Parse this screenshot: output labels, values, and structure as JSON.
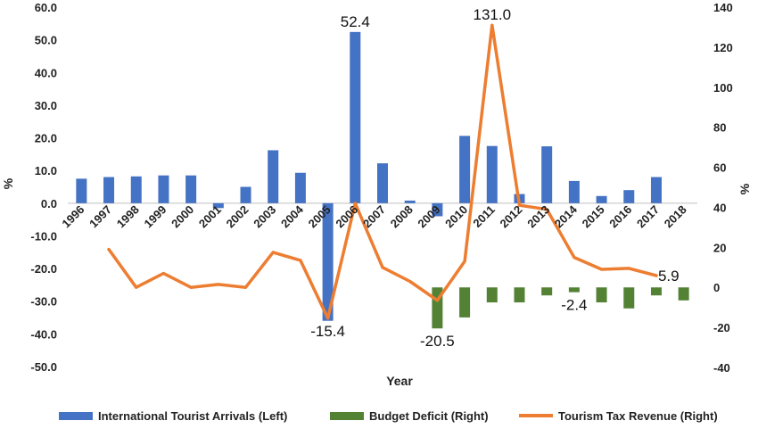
{
  "chart_data": {
    "type": "bar+line",
    "categories": [
      "1996",
      "1997",
      "1998",
      "1999",
      "2000",
      "2001",
      "2002",
      "2003",
      "2004",
      "2005",
      "2006",
      "2007",
      "2008",
      "2009",
      "2010",
      "2011",
      "2012",
      "2013",
      "2014",
      "2015",
      "2016",
      "2017",
      "2018"
    ],
    "series": [
      {
        "name": "International Tourist Arrivals (Left)",
        "type": "bar",
        "axis": "left",
        "color": "#4472C4",
        "values": [
          7.5,
          8.0,
          8.2,
          8.5,
          8.5,
          -1.5,
          5.0,
          16.2,
          9.3,
          -36.0,
          52.4,
          12.2,
          0.8,
          -4.0,
          20.6,
          17.5,
          2.8,
          17.4,
          6.8,
          2.2,
          4.0,
          8.0,
          null
        ]
      },
      {
        "name": "Budget Deficit (Right)",
        "type": "bar",
        "axis": "right",
        "color": "#548235",
        "values": [
          null,
          null,
          null,
          null,
          null,
          null,
          null,
          null,
          null,
          null,
          null,
          null,
          null,
          -20.5,
          -15.0,
          -7.5,
          -7.5,
          -4.0,
          -2.4,
          -7.5,
          -10.5,
          -4.0,
          -6.5
        ]
      },
      {
        "name": "Tourism Tax Revenue (Right)",
        "type": "line",
        "axis": "right",
        "color": "#ED7D31",
        "values": [
          null,
          19.0,
          0.0,
          7.0,
          0.0,
          1.5,
          0.0,
          17.5,
          13.5,
          -15.4,
          42.0,
          10.0,
          3.0,
          -6.5,
          13.0,
          131.0,
          41.0,
          39.0,
          15.0,
          9.0,
          9.5,
          5.9,
          null
        ]
      }
    ],
    "annotations": [
      {
        "text": "52.4",
        "series": 0,
        "index": 10,
        "anchor": "above"
      },
      {
        "text": "131.0",
        "series": 2,
        "index": 15,
        "anchor": "above"
      },
      {
        "text": "-15.4",
        "series": 2,
        "index": 9,
        "anchor": "below"
      },
      {
        "text": "-20.5",
        "series": 1,
        "index": 13,
        "anchor": "below"
      },
      {
        "text": "-2.4",
        "series": 1,
        "index": 18,
        "anchor": "below"
      },
      {
        "text": "5.9",
        "series": 2,
        "index": 21,
        "anchor": "right"
      }
    ],
    "y_left": {
      "label": "%",
      "min": -50,
      "max": 60,
      "step": 10,
      "tick_labels": [
        "60.0",
        "50.0",
        "40.0",
        "30.0",
        "20.0",
        "10.0",
        "0.0",
        "-10.0",
        "-20.0",
        "-30.0",
        "-40.0",
        "-50.0"
      ]
    },
    "y_right": {
      "label": "%",
      "min": -40,
      "max": 140,
      "step": 20,
      "tick_labels": [
        "140",
        "120",
        "100",
        "80",
        "60",
        "40",
        "20",
        "0",
        "-20",
        "-40"
      ]
    },
    "xlabel": "Year",
    "grid": false,
    "legend_position": "bottom"
  },
  "legend": [
    {
      "label": "International Tourist Arrivals (Left)",
      "color": "#4472C4",
      "shape": "rect"
    },
    {
      "label": "Budget Deficit (Right)",
      "color": "#548235",
      "shape": "rect"
    },
    {
      "label": "Tourism Tax Revenue (Right)",
      "color": "#ED7D31",
      "shape": "line"
    }
  ]
}
